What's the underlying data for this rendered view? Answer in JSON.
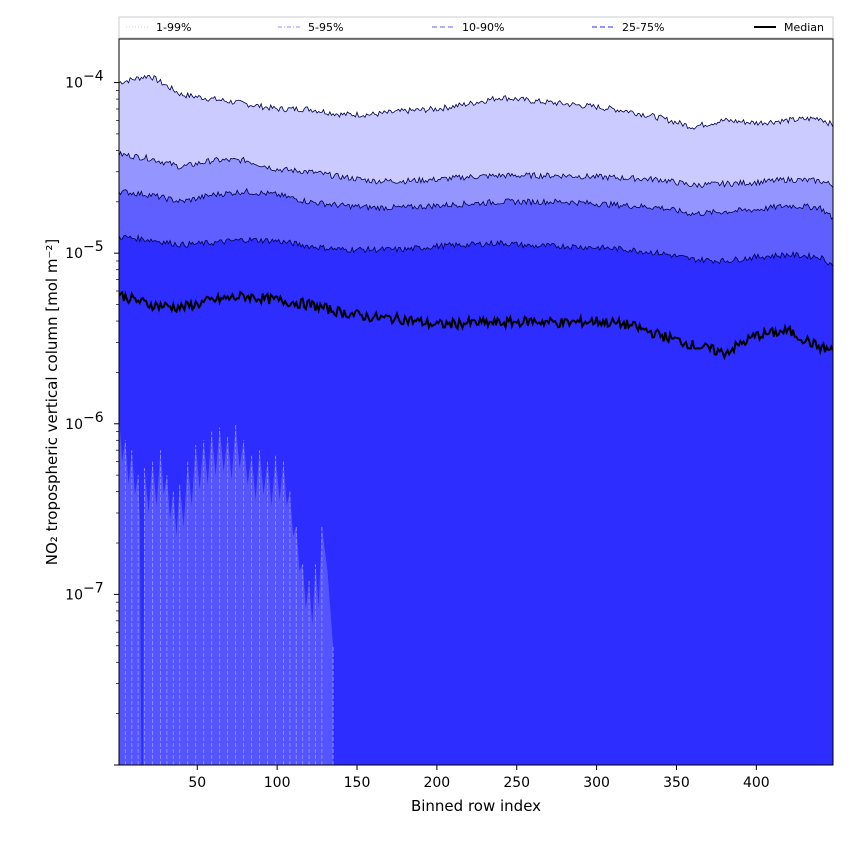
{
  "chart_data": {
    "type": "area",
    "xlabel": "Binned row index",
    "ylabel": "NO₂ tropospheric vertical column [mol m⁻²]",
    "x_range": [
      1,
      448
    ],
    "y_range": [
      1e-08,
      0.00018
    ],
    "y_scale": "log",
    "x_ticks": [
      50,
      100,
      150,
      200,
      250,
      300,
      350,
      400
    ],
    "y_ticks": [
      {
        "value": 1e-07,
        "mantissa": "10",
        "exponent": "−7"
      },
      {
        "value": 1e-06,
        "mantissa": "10",
        "exponent": "−6"
      },
      {
        "value": 1e-05,
        "mantissa": "10",
        "exponent": "−5"
      },
      {
        "value": 0.0001,
        "mantissa": "10",
        "exponent": "−4"
      }
    ],
    "legend_position": "top",
    "legend": [
      {
        "label": "1-99%",
        "color": "#d4d4ff",
        "style": "dotted"
      },
      {
        "label": "5-95%",
        "color": "#a8a8ff",
        "style": "dashdot"
      },
      {
        "label": "10-90%",
        "color": "#8080ff",
        "style": "dashed"
      },
      {
        "label": "25-75%",
        "color": "#5555ff",
        "style": "dashed"
      },
      {
        "label": "Median",
        "color": "#000000",
        "style": "solid"
      }
    ],
    "x": [
      1,
      20,
      40,
      60,
      80,
      100,
      120,
      140,
      160,
      180,
      200,
      220,
      240,
      260,
      280,
      300,
      320,
      340,
      360,
      380,
      400,
      420,
      440,
      448
    ],
    "series": [
      {
        "name": "1-99%",
        "fill": "#cbcbff",
        "upper": [
          0.0001,
          0.00011,
          8.5e-05,
          8e-05,
          7.5e-05,
          7e-05,
          7e-05,
          6.5e-05,
          6.5e-05,
          6.8e-05,
          7e-05,
          7.5e-05,
          8.2e-05,
          7.8e-05,
          7.5e-05,
          7.2e-05,
          6.8e-05,
          6.2e-05,
          5.5e-05,
          6e-05,
          5.8e-05,
          6e-05,
          6.2e-05,
          5.6e-05
        ],
        "lower": [
          1e-08,
          1e-08,
          1e-08,
          1e-08,
          1e-08,
          1e-08,
          1e-08,
          1e-08,
          1e-08,
          1e-08,
          1e-08,
          1e-08,
          1e-08,
          1e-08,
          1e-08,
          1e-08,
          1e-08,
          1e-08,
          1e-08,
          1e-08,
          1e-08,
          1e-08,
          1e-08,
          1e-08
        ]
      },
      {
        "name": "5-95%",
        "fill": "#9595ff",
        "upper": [
          3.8e-05,
          3.6e-05,
          3.2e-05,
          3.5e-05,
          3.5e-05,
          3.1e-05,
          3e-05,
          2.8e-05,
          2.65e-05,
          2.65e-05,
          2.7e-05,
          2.8e-05,
          2.85e-05,
          2.85e-05,
          2.85e-05,
          2.8e-05,
          2.75e-05,
          2.7e-05,
          2.5e-05,
          2.55e-05,
          2.6e-05,
          2.7e-05,
          2.65e-05,
          2.5e-05
        ],
        "lower": [
          1e-08,
          1e-08,
          1e-08,
          1e-08,
          1e-08,
          1e-08,
          1e-08,
          1e-08,
          1e-08,
          1e-08,
          1e-08,
          1e-08,
          1e-08,
          1e-08,
          1e-08,
          1e-08,
          1e-08,
          1e-08,
          1e-08,
          1e-08,
          1e-08,
          1e-08,
          1e-08,
          1e-08
        ]
      },
      {
        "name": "10-90%",
        "fill": "#5f5fff",
        "upper": [
          2.3e-05,
          2.2e-05,
          2e-05,
          2.2e-05,
          2.3e-05,
          2.2e-05,
          2e-05,
          1.9e-05,
          1.85e-05,
          1.85e-05,
          1.9e-05,
          1.95e-05,
          2e-05,
          2e-05,
          2e-05,
          1.95e-05,
          1.9e-05,
          1.85e-05,
          1.7e-05,
          1.75e-05,
          1.8e-05,
          1.9e-05,
          1.85e-05,
          1.6e-05
        ],
        "lower": [
          1e-08,
          1e-08,
          1e-08,
          1e-08,
          1e-08,
          1e-08,
          1e-08,
          1e-08,
          1e-08,
          1e-08,
          1e-08,
          1e-08,
          1e-08,
          1e-08,
          1e-08,
          1e-08,
          1e-08,
          1e-08,
          1e-08,
          1e-08,
          1e-08,
          1e-08,
          1e-08,
          1e-08
        ]
      },
      {
        "name": "25-75%",
        "fill": "#2d2dff",
        "upper": [
          1.25e-05,
          1.2e-05,
          1.12e-05,
          1.15e-05,
          1.2e-05,
          1.18e-05,
          1.1e-05,
          1.05e-05,
          1.05e-05,
          1.05e-05,
          1.1e-05,
          1.12e-05,
          1.15e-05,
          1.1e-05,
          1.1e-05,
          1.08e-05,
          1.05e-05,
          1e-05,
          9.2e-06,
          9e-06,
          9.5e-06,
          9.8e-06,
          9.5e-06,
          8.5e-06
        ],
        "lower": [
          1e-08,
          1e-08,
          1e-08,
          1e-08,
          1e-08,
          1e-08,
          1e-08,
          1e-08,
          1e-08,
          1e-08,
          1e-08,
          1e-08,
          1e-08,
          1e-08,
          1e-08,
          1e-08,
          1e-08,
          1e-08,
          1e-08,
          1e-08,
          1e-08,
          1e-08,
          1e-08,
          1e-08
        ]
      },
      {
        "name": "Median",
        "color": "#000000",
        "values": [
          5.7e-06,
          5e-06,
          4.8e-06,
          5.3e-06,
          5.6e-06,
          5.3e-06,
          5e-06,
          4.5e-06,
          4.2e-06,
          4.1e-06,
          3.8e-06,
          3.9e-06,
          3.9e-06,
          4e-06,
          3.9e-06,
          4e-06,
          3.8e-06,
          3.3e-06,
          2.9e-06,
          2.6e-06,
          3.3e-06,
          3.5e-06,
          2.8e-06,
          2.7e-06
        ]
      }
    ],
    "spikes_10_90_lower": {
      "color": "#5757ff",
      "x": [
        1,
        5,
        9,
        13,
        15,
        17,
        22,
        27,
        31,
        35,
        39,
        44,
        49,
        54,
        59,
        64,
        69,
        74,
        79,
        84,
        89,
        94,
        99,
        104,
        108,
        112,
        116,
        120,
        124,
        128,
        135
      ],
      "values": [
        1.1e-06,
        8e-07,
        7e-07,
        5e-07,
        1e-08,
        5.5e-07,
        6e-07,
        7e-07,
        5e-07,
        4e-07,
        4.5e-07,
        6e-07,
        7.5e-07,
        8e-07,
        9e-07,
        9.5e-07,
        8.5e-07,
        1e-06,
        8e-07,
        6.5e-07,
        7e-07,
        6e-07,
        6.5e-07,
        6e-07,
        4e-07,
        2.5e-07,
        1.5e-07,
        1.2e-07,
        1.5e-07,
        2.5e-07,
        5e-08
      ]
    }
  }
}
